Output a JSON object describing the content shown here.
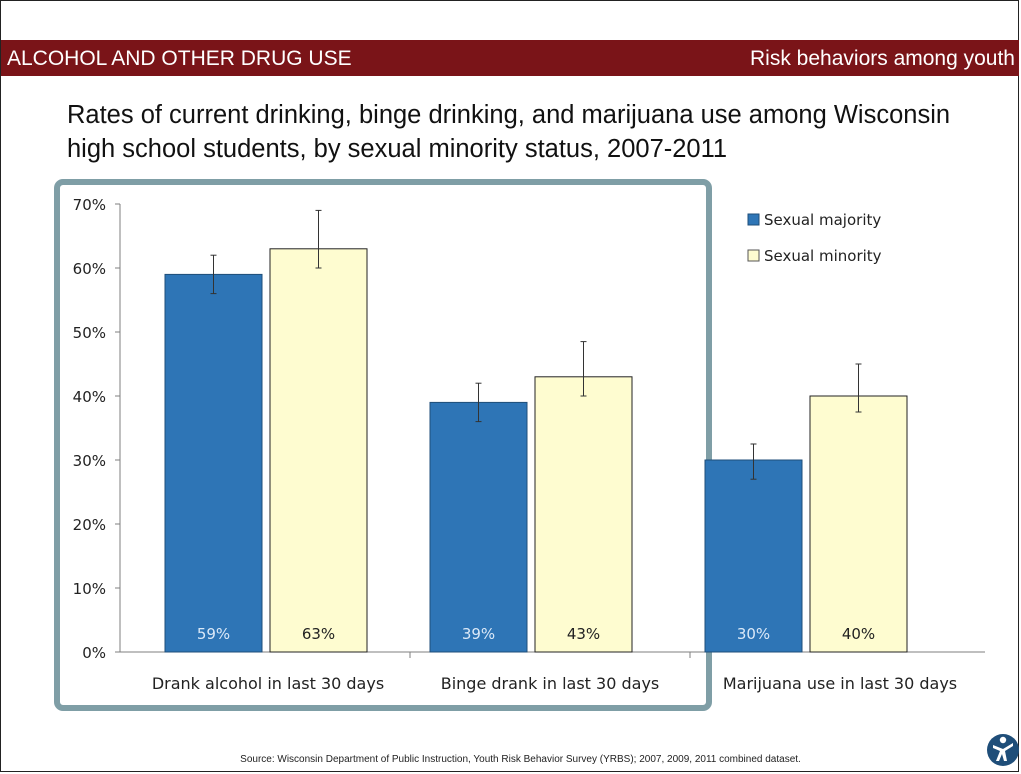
{
  "header": {
    "left_text": "ALCOHOL AND OTHER DRUG USE",
    "right_text": "Risk behaviors among youth",
    "band_color": "#7a1418"
  },
  "title": "Rates of current drinking, binge drinking, and marijuana use among Wisconsin high school students, by sexual minority status, 2007-2011",
  "footer": {
    "source": "Source: Wisconsin Department of Public Instruction, Youth Risk Behavior Survey (YRBS); 2007, 2009, 2011 combined dataset."
  },
  "chart_data": {
    "type": "bar",
    "categories": [
      "Drank alcohol in last 30 days",
      "Binge drank in last 30 days",
      "Marijuana use in last 30 days"
    ],
    "series": [
      {
        "name": "Sexual majority",
        "color": "#2e75b6",
        "values": [
          59,
          39,
          30
        ],
        "error_low": [
          56,
          36,
          27
        ],
        "error_high": [
          62,
          42,
          32.5
        ],
        "labels": [
          "59%",
          "39%",
          "30%"
        ],
        "label_color": "#dbe9f8"
      },
      {
        "name": "Sexual minority",
        "color": "#fefcd0",
        "values": [
          63,
          43,
          40
        ],
        "error_low": [
          60,
          40,
          37.5
        ],
        "error_high": [
          69,
          48.5,
          45
        ],
        "labels": [
          "63%",
          "43%",
          "40%"
        ],
        "label_color": "#222222"
      }
    ],
    "ylim": [
      0,
      70
    ],
    "yticks": [
      "0%",
      "10%",
      "20%",
      "30%",
      "40%",
      "50%",
      "60%",
      "70%"
    ],
    "legend_position": "top-right",
    "highlight_box_color": "#7f9ea6",
    "highlight_box_covers": "Drank alcohol in last 30 days; Binge drank in last 30 days"
  }
}
